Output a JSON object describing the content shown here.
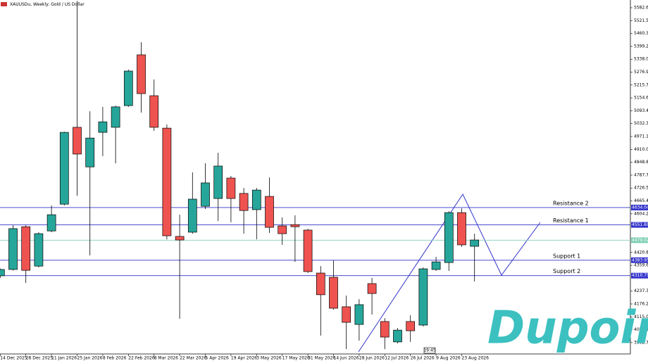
{
  "chart_data": {
    "type": "candlestick",
    "title": "XAUUSDu, Weekly: Gold / US Dollar",
    "categories": [
      "14 Dec 2025",
      null,
      "28 Dec 2025",
      null,
      "11 Jan 2026",
      null,
      "25 Jan 2026",
      null,
      "8 Feb 2026",
      null,
      "22 Feb 2026",
      null,
      "8 Mar 2026",
      null,
      "22 Mar 2026",
      null,
      "5 Apr 2026",
      null,
      "19 Apr 2026",
      null,
      "3 May 2026",
      null,
      "17 May 2026",
      null,
      "31 May 2026",
      null,
      "14 Jun 2026",
      null,
      "28 Jun 2026",
      null,
      "12 Jul 2026",
      null,
      "26 Jul 2026",
      null,
      "9 Aug 2026",
      null,
      "23 Aug 2026",
      null
    ],
    "ohlc": {
      "open": [
        4310,
        4340,
        4543,
        4356,
        4523,
        4650,
        5015,
        4827,
        4991,
        5015,
        5118,
        5359,
        5165,
        5011,
        4497,
        4517,
        4640,
        4677,
        4774,
        4701,
        4624,
        4687,
        4547,
        4553,
        4527,
        4323,
        4303,
        4163,
        4079,
        4273,
        4093,
        3996,
        4093,
        4076,
        4340,
        4373,
        4610,
        4450
      ],
      "high": [
        4345,
        4550,
        4550,
        4517,
        4644,
        4994,
        5615,
        5091,
        5112,
        5118,
        5289,
        5419,
        5242,
        5028,
        4600,
        4801,
        4844,
        4894,
        4784,
        4727,
        4727,
        4777,
        4587,
        4597,
        4533,
        4356,
        4383,
        4216,
        4199,
        4300,
        4109,
        4062,
        4123,
        4350,
        4400,
        4617,
        4630,
        4510
      ],
      "low": [
        4300,
        4335,
        4276,
        4350,
        4517,
        4644,
        4690,
        4407,
        4878,
        4844,
        5112,
        5085,
        4998,
        4483,
        4106,
        4510,
        4627,
        4570,
        4564,
        4510,
        4483,
        4513,
        4457,
        4376,
        4323,
        4026,
        4149,
        3962,
        4002,
        4126,
        3962,
        3989,
        3996,
        4069,
        4333,
        4333,
        4447,
        4283
      ],
      "close": [
        4340,
        4534,
        4336,
        4510,
        4600,
        4991,
        4888,
        4964,
        5041,
        5112,
        5282,
        5175,
        5015,
        4500,
        4480,
        4674,
        4751,
        4831,
        4677,
        4620,
        4717,
        4540,
        4510,
        4543,
        4330,
        4220,
        4156,
        4089,
        4173,
        4226,
        4019,
        4052,
        4049,
        4343,
        4376,
        4610,
        4457,
        4480
      ]
    },
    "up_color": "#26a69a",
    "down_color": "#ef5350",
    "ylim": [
      3938.9,
      5619.4
    ],
    "yticks": [
      {
        "value": 5582.65,
        "label": "5582.65"
      },
      {
        "value": 5521.5,
        "label": "5521.50"
      },
      {
        "value": 5460.35,
        "label": "5460.35"
      },
      {
        "value": 5399.2,
        "label": "5399.20"
      },
      {
        "value": 5338.05,
        "label": "5338.05"
      },
      {
        "value": 5276.9,
        "label": "5276.90"
      },
      {
        "value": 5215.75,
        "label": "5215.75"
      },
      {
        "value": 5154.6,
        "label": "5154.60"
      },
      {
        "value": 5093.45,
        "label": "5093.45"
      },
      {
        "value": 5032.3,
        "label": "5032.30"
      },
      {
        "value": 4971.15,
        "label": "4971.15"
      },
      {
        "value": 4910,
        "label": "4910.00"
      },
      {
        "value": 4848.85,
        "label": "4848.85"
      },
      {
        "value": 4787.7,
        "label": "4787.70"
      },
      {
        "value": 4726.55,
        "label": "4726.55"
      },
      {
        "value": 4665.4,
        "label": "4665.40"
      },
      {
        "value": 4604.25,
        "label": "4604.25"
      },
      {
        "value": 4420.8,
        "label": "4420.80"
      },
      {
        "value": 4359.65,
        "label": "4359.65"
      },
      {
        "value": 4237.35,
        "label": "4237.35"
      },
      {
        "value": 4176.2,
        "label": "4176.20"
      },
      {
        "value": 4115.05,
        "label": "4115.05"
      },
      {
        "value": 4053.9,
        "label": "4053.90"
      },
      {
        "value": 3992.75,
        "label": "3992.75"
      }
    ],
    "levels": [
      {
        "name": "Resistance 2",
        "value": 4634.04,
        "color": "#3333cc"
      },
      {
        "name": "Resistance 1",
        "value": 4551.69,
        "color": "#3333cc"
      },
      {
        "name": "Support 1",
        "value": 4383.95,
        "color": "#3333cc"
      },
      {
        "name": "Support 2",
        "value": 4310.75,
        "color": "#3333cc"
      }
    ],
    "last_price": 4479.02,
    "last_price_color": "#7fcfb5",
    "time_label": "19:45",
    "logo": "Dupoin"
  }
}
